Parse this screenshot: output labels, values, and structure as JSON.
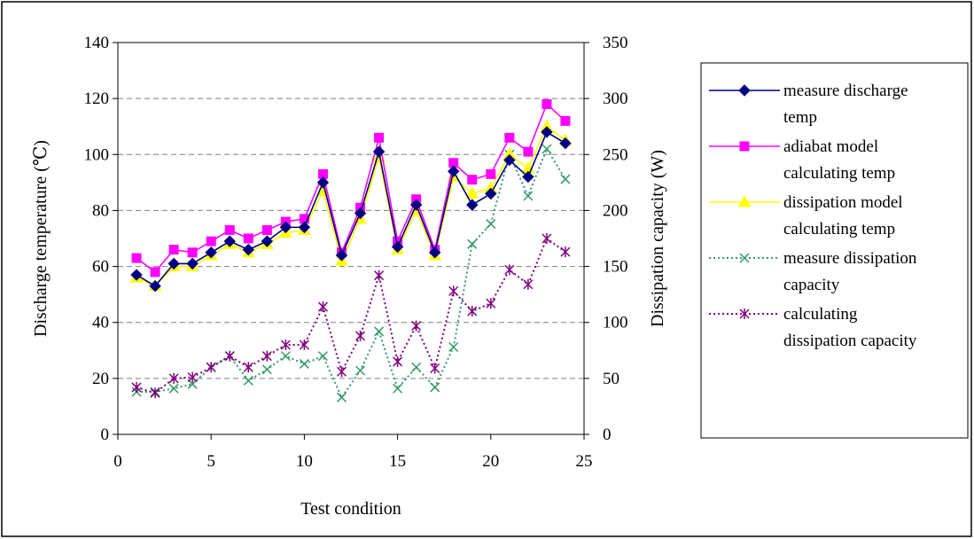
{
  "chart_data": {
    "type": "line",
    "xlabel": "Test condition",
    "ylabel": "Discharge temperature (℃)",
    "y2label": "Dissipation capacity (W)",
    "xlim": [
      0,
      25
    ],
    "ylim": [
      0,
      140
    ],
    "y2lim": [
      0,
      350
    ],
    "x_ticks": [
      "0",
      "5",
      "10",
      "15",
      "20",
      "25"
    ],
    "y_ticks": [
      "0",
      "20",
      "40",
      "60",
      "80",
      "100",
      "120",
      "140"
    ],
    "y2_ticks": [
      "0",
      "50",
      "100",
      "150",
      "200",
      "250",
      "300",
      "350"
    ],
    "grid": "horizontal dashed",
    "legend_position": "right",
    "x": [
      1,
      2,
      3,
      4,
      5,
      6,
      7,
      8,
      9,
      10,
      11,
      12,
      13,
      14,
      15,
      16,
      17,
      18,
      19,
      20,
      21,
      22,
      23,
      24
    ],
    "series": [
      {
        "name": "measure discharge temp",
        "legend_lines": [
          "measure discharge",
          "temp"
        ],
        "axis": "left",
        "color": "#000080",
        "marker": "diamond",
        "line": "solid",
        "values": [
          57,
          53,
          61,
          61,
          65,
          69,
          66,
          69,
          74,
          74,
          90,
          64,
          79,
          101,
          67,
          82,
          65,
          94,
          82,
          86,
          98,
          92,
          108,
          104
        ]
      },
      {
        "name": "adiabat model calculating temp",
        "legend_lines": [
          "adiabat model",
          "calculating temp"
        ],
        "axis": "left",
        "color": "#ff00ff",
        "marker": "square",
        "line": "solid",
        "values": [
          63,
          58,
          66,
          65,
          69,
          73,
          70,
          73,
          76,
          77,
          93,
          65,
          81,
          106,
          69,
          84,
          66,
          97,
          91,
          93,
          106,
          101,
          118,
          112
        ]
      },
      {
        "name": "dissipation model calculating temp",
        "legend_lines": [
          "dissipation model",
          "calculating temp"
        ],
        "axis": "left",
        "color": "#ffff00",
        "marker": "triangle",
        "line": "solid",
        "values": [
          56,
          53,
          60,
          60,
          64,
          68,
          65,
          68,
          72,
          73,
          87,
          62,
          77,
          99,
          66,
          80,
          64,
          92,
          86,
          88,
          100,
          95,
          110,
          105
        ]
      },
      {
        "name": "measure dissipation capacity",
        "legend_lines": [
          "measure dissipation",
          "capacity"
        ],
        "axis": "right",
        "color": "#339966",
        "marker": "x",
        "line": "dotted",
        "values": [
          38,
          38,
          41,
          45,
          60,
          70,
          48,
          58,
          70,
          63,
          70,
          33,
          57,
          92,
          41,
          60,
          42,
          78,
          170,
          188,
          250,
          213,
          255,
          228
        ]
      },
      {
        "name": "calculating dissipation capacity",
        "legend_lines": [
          "calculating",
          "dissipation capacity"
        ],
        "axis": "right",
        "color": "#800080",
        "marker": "asterisk",
        "line": "dotted",
        "values": [
          42,
          37,
          50,
          51,
          60,
          70,
          60,
          70,
          80,
          80,
          114,
          56,
          88,
          142,
          65,
          97,
          59,
          128,
          110,
          117,
          147,
          134,
          175,
          163
        ]
      }
    ]
  }
}
